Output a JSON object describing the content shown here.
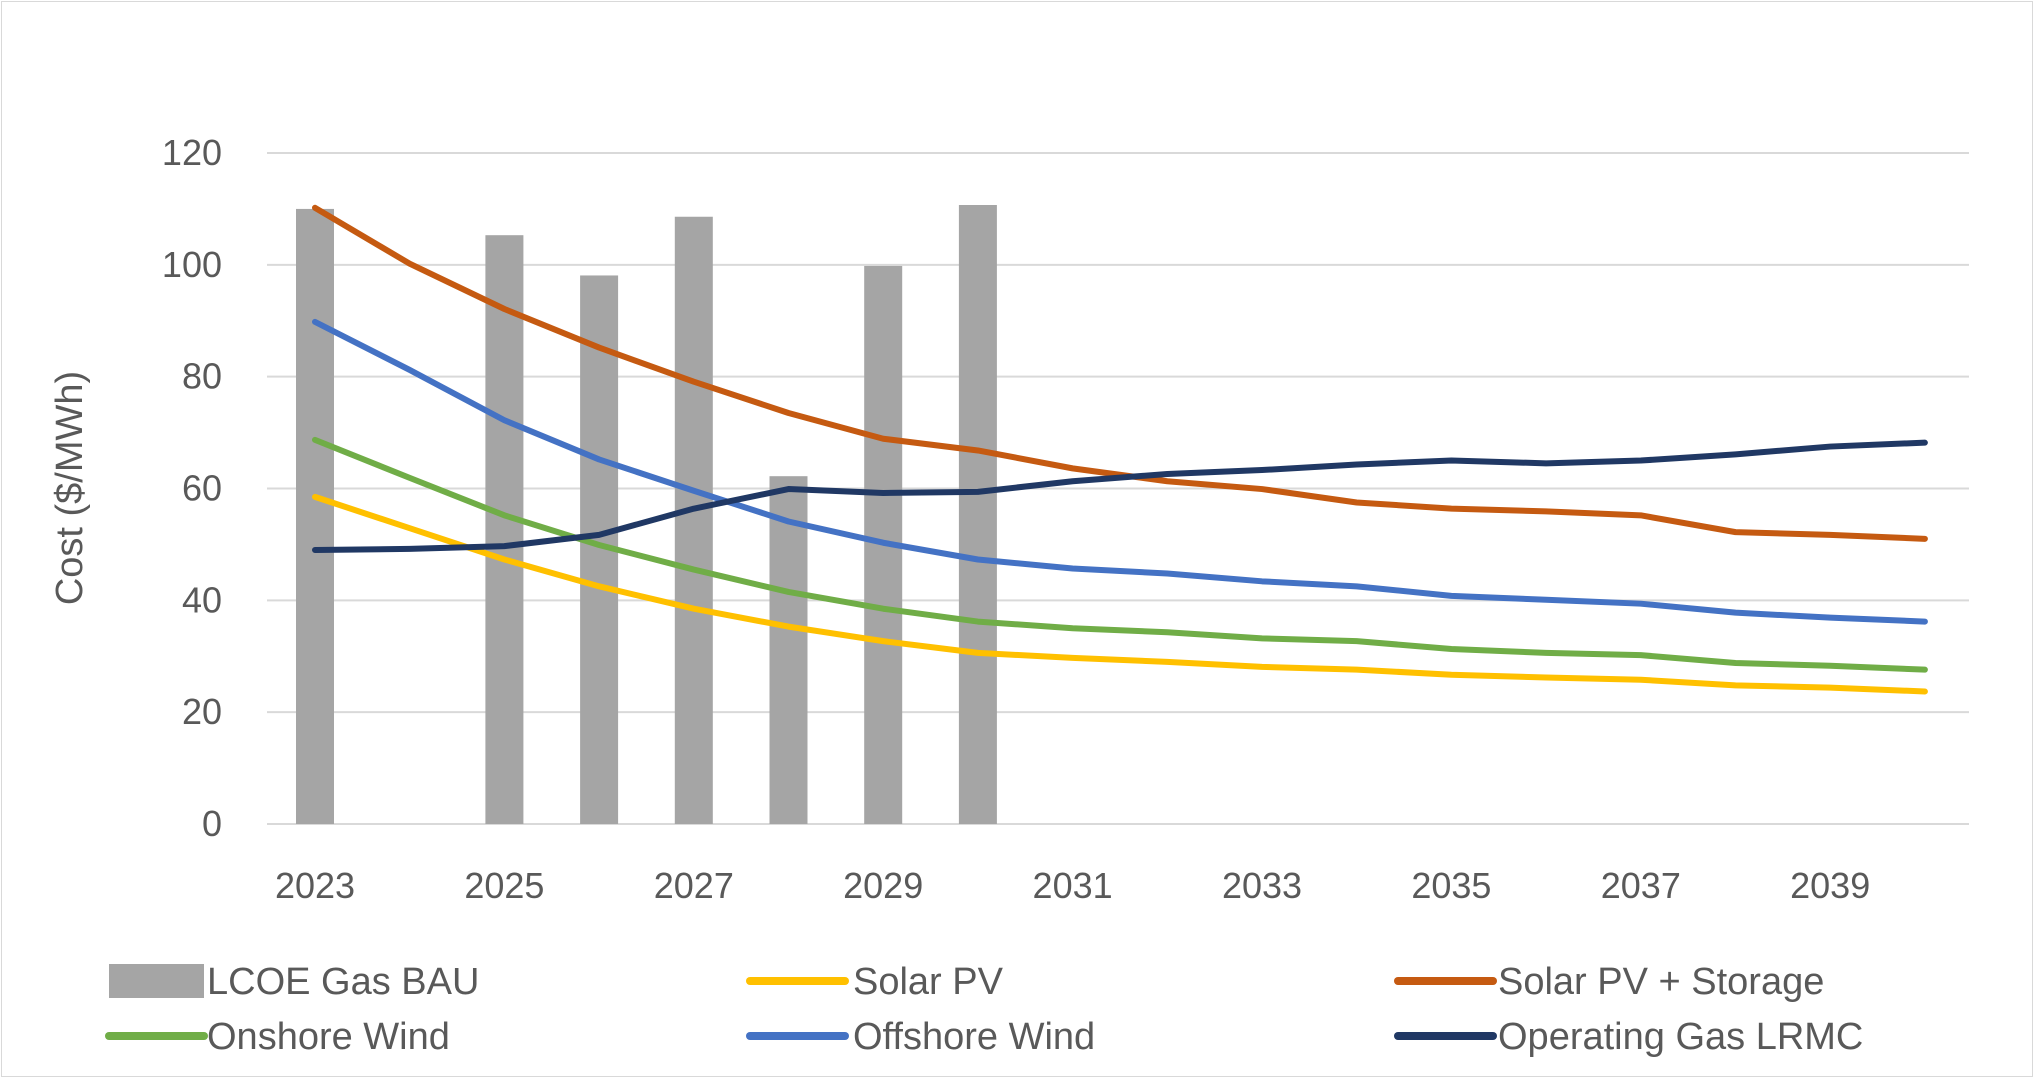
{
  "chart_data": {
    "type": "bar+line",
    "title": "",
    "xlabel": "",
    "ylabel": "Cost ($/MWh)",
    "ylim": [
      0,
      120
    ],
    "yticks": [
      0,
      20,
      40,
      60,
      80,
      100,
      120
    ],
    "grid": true,
    "legend_position": "bottom",
    "categories": [
      2023,
      2024,
      2025,
      2026,
      2027,
      2028,
      2029,
      2030,
      2031,
      2032,
      2033,
      2034,
      2035,
      2036,
      2037,
      2038,
      2039,
      2040
    ],
    "xtick_labels": [
      "2023",
      "2025",
      "2027",
      "2029",
      "2031",
      "2033",
      "2035",
      "2037",
      "2039"
    ],
    "series": [
      {
        "name": "LCOE Gas BAU",
        "kind": "bar",
        "color": "#a5a5a5",
        "values": [
          110,
          null,
          105.3,
          98.1,
          108.6,
          62.2,
          99.8,
          110.7,
          null,
          null,
          null,
          null,
          null,
          null,
          null,
          null,
          null,
          null
        ]
      },
      {
        "name": "Solar PV",
        "kind": "line",
        "color": "#ffc000",
        "values": [
          58.5,
          52.9,
          47.3,
          42.5,
          38.5,
          35.3,
          32.7,
          30.6,
          29.7,
          29.0,
          28.1,
          27.6,
          26.7,
          26.2,
          25.8,
          24.8,
          24.4,
          23.7
        ]
      },
      {
        "name": "Solar PV + Storage",
        "kind": "line",
        "color": "#c55a11",
        "values": [
          110.2,
          100.2,
          92.1,
          85.2,
          79.1,
          73.5,
          68.9,
          66.8,
          63.6,
          61.3,
          59.9,
          57.5,
          56.4,
          55.9,
          55.2,
          52.2,
          51.7,
          51.0
        ]
      },
      {
        "name": "Onshore Wind",
        "kind": "line",
        "color": "#70ad47",
        "values": [
          68.7,
          61.9,
          55.2,
          49.9,
          45.5,
          41.5,
          38.5,
          36.2,
          35.0,
          34.3,
          33.2,
          32.7,
          31.3,
          30.6,
          30.2,
          28.8,
          28.3,
          27.6
        ]
      },
      {
        "name": "Offshore Wind",
        "kind": "line",
        "color": "#4472c4",
        "values": [
          89.8,
          81.2,
          72.2,
          65.2,
          59.6,
          54.1,
          50.3,
          47.3,
          45.7,
          44.8,
          43.4,
          42.5,
          40.8,
          40.1,
          39.4,
          37.8,
          36.9,
          36.2
        ]
      },
      {
        "name": "Operating Gas LRMC",
        "kind": "line",
        "color": "#203864",
        "values": [
          49.0,
          49.2,
          49.7,
          51.7,
          56.4,
          59.9,
          59.2,
          59.4,
          61.3,
          62.6,
          63.3,
          64.3,
          65.0,
          64.5,
          65.0,
          66.1,
          67.5,
          68.2
        ]
      }
    ]
  }
}
